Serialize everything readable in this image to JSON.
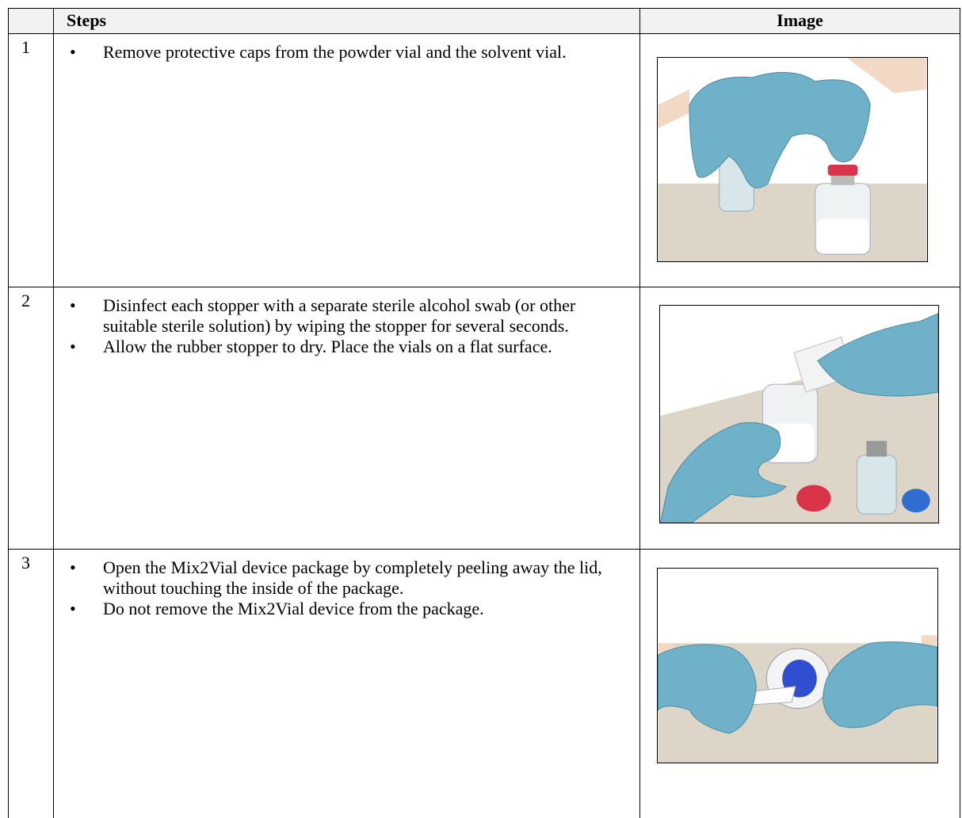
{
  "table": {
    "header": {
      "steps": "Steps",
      "image": "Image"
    },
    "rows": [
      {
        "number": "1",
        "bullets": [
          "Remove protective caps from the powder vial and the solvent vial."
        ]
      },
      {
        "number": "2",
        "bullets": [
          "Disinfect each stopper with a separate sterile alcohol swab (or other suitable sterile solution) by wiping the stopper for several seconds.",
          "Allow the rubber stopper to dry. Place the vials on a flat surface."
        ]
      },
      {
        "number": "3",
        "bullets": [
          "Open the Mix2Vial device package by completely peeling away the lid, without touching the inside of the package.",
          "Do not remove the Mix2Vial device from the package."
        ]
      }
    ]
  }
}
